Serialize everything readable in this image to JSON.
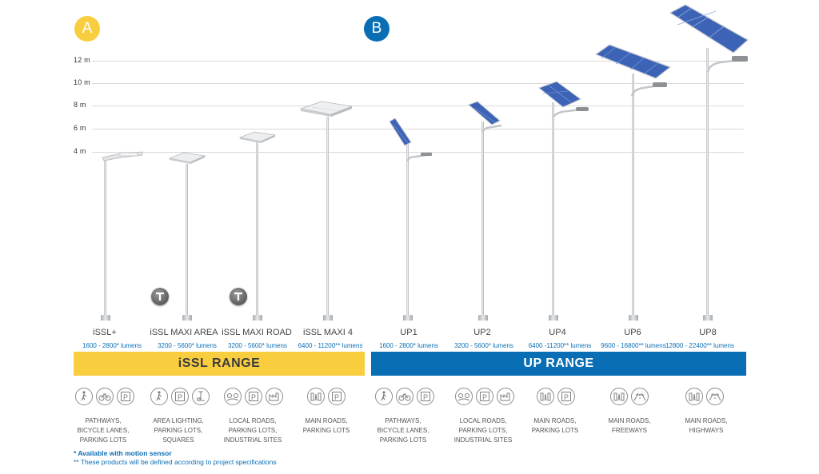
{
  "badges": {
    "a": "A",
    "b": "B"
  },
  "colors": {
    "issl": "#f8ce3f",
    "up": "#0a6eb4",
    "lumens": "#0a6eb4"
  },
  "scale": [
    "12 m",
    "10 m",
    "8 m",
    "6 m",
    "4 m"
  ],
  "products": [
    {
      "name": "iSSL+",
      "lumens": "1600  - 2800* lumens"
    },
    {
      "name": "iSSL MAXI AREA",
      "lumens": "3200 - 5600* lumens"
    },
    {
      "name": "iSSL MAXI ROAD",
      "lumens": "3200 - 5600* lumens"
    },
    {
      "name": "iSSL MAXI 4",
      "lumens": "6400 - 11200** lumens"
    },
    {
      "name": "UP1",
      "lumens": "1600  - 2800* lumens"
    },
    {
      "name": "UP2",
      "lumens": "3200 - 5600* lumens"
    },
    {
      "name": "UP4",
      "lumens": "6400  -11200** lumens"
    },
    {
      "name": "UP6",
      "lumens": "9600 - 16800** lumens"
    },
    {
      "name": "UP8",
      "lumens": "12800 - 22400** lumens"
    }
  ],
  "ranges": {
    "issl": "iSSL RANGE",
    "up": "UP RANGE"
  },
  "usage_groups": [
    {
      "icons": [
        "pedestrian-icon",
        "bicycle-icon",
        "parking-icon"
      ],
      "lines": [
        "PATHWAYS,",
        "BICYCLE LANES,",
        "PARKING LOTS"
      ]
    },
    {
      "icons": [
        "pedestrian-icon",
        "parking-icon",
        "area-lighting-icon"
      ],
      "lines": [
        "AREA LIGHTING,",
        "PARKING LOTS,",
        "SQUARES"
      ]
    },
    {
      "icons": [
        "local-road-icon",
        "parking-icon",
        "industrial-icon"
      ],
      "lines": [
        "LOCAL ROADS,",
        "PARKING LOTS,",
        "INDUSTRIAL SITES"
      ]
    },
    {
      "icons": [
        "city-road-icon",
        "parking-icon"
      ],
      "lines": [
        "MAIN ROADS,",
        "PARKING LOTS"
      ]
    },
    {
      "icons": [
        "pedestrian-icon",
        "bicycle-icon",
        "parking-icon"
      ],
      "lines": [
        "PATHWAYS,",
        "BICYCLE LANES,",
        "PARKING LOTS"
      ]
    },
    {
      "icons": [
        "local-road-icon",
        "parking-icon",
        "industrial-icon"
      ],
      "lines": [
        "LOCAL ROADS,",
        "PARKING LOTS,",
        "INDUSTRIAL SITES"
      ]
    },
    {
      "icons": [
        "city-road-icon",
        "parking-icon"
      ],
      "lines": [
        "MAIN ROADS,",
        "PARKING LOTS"
      ]
    },
    {
      "icons": [
        "city-road-icon",
        "freeway-icon"
      ],
      "lines": [
        "MAIN ROADS,",
        "FREEWAYS"
      ]
    },
    {
      "icons": [
        "city-road-icon",
        "freeway-icon"
      ],
      "lines": [
        "MAIN ROADS,",
        "HIGHWAYS"
      ]
    }
  ],
  "notes": {
    "motion": "* Available with motion sensor",
    "project": "** These products will be defined according to project specifications"
  }
}
